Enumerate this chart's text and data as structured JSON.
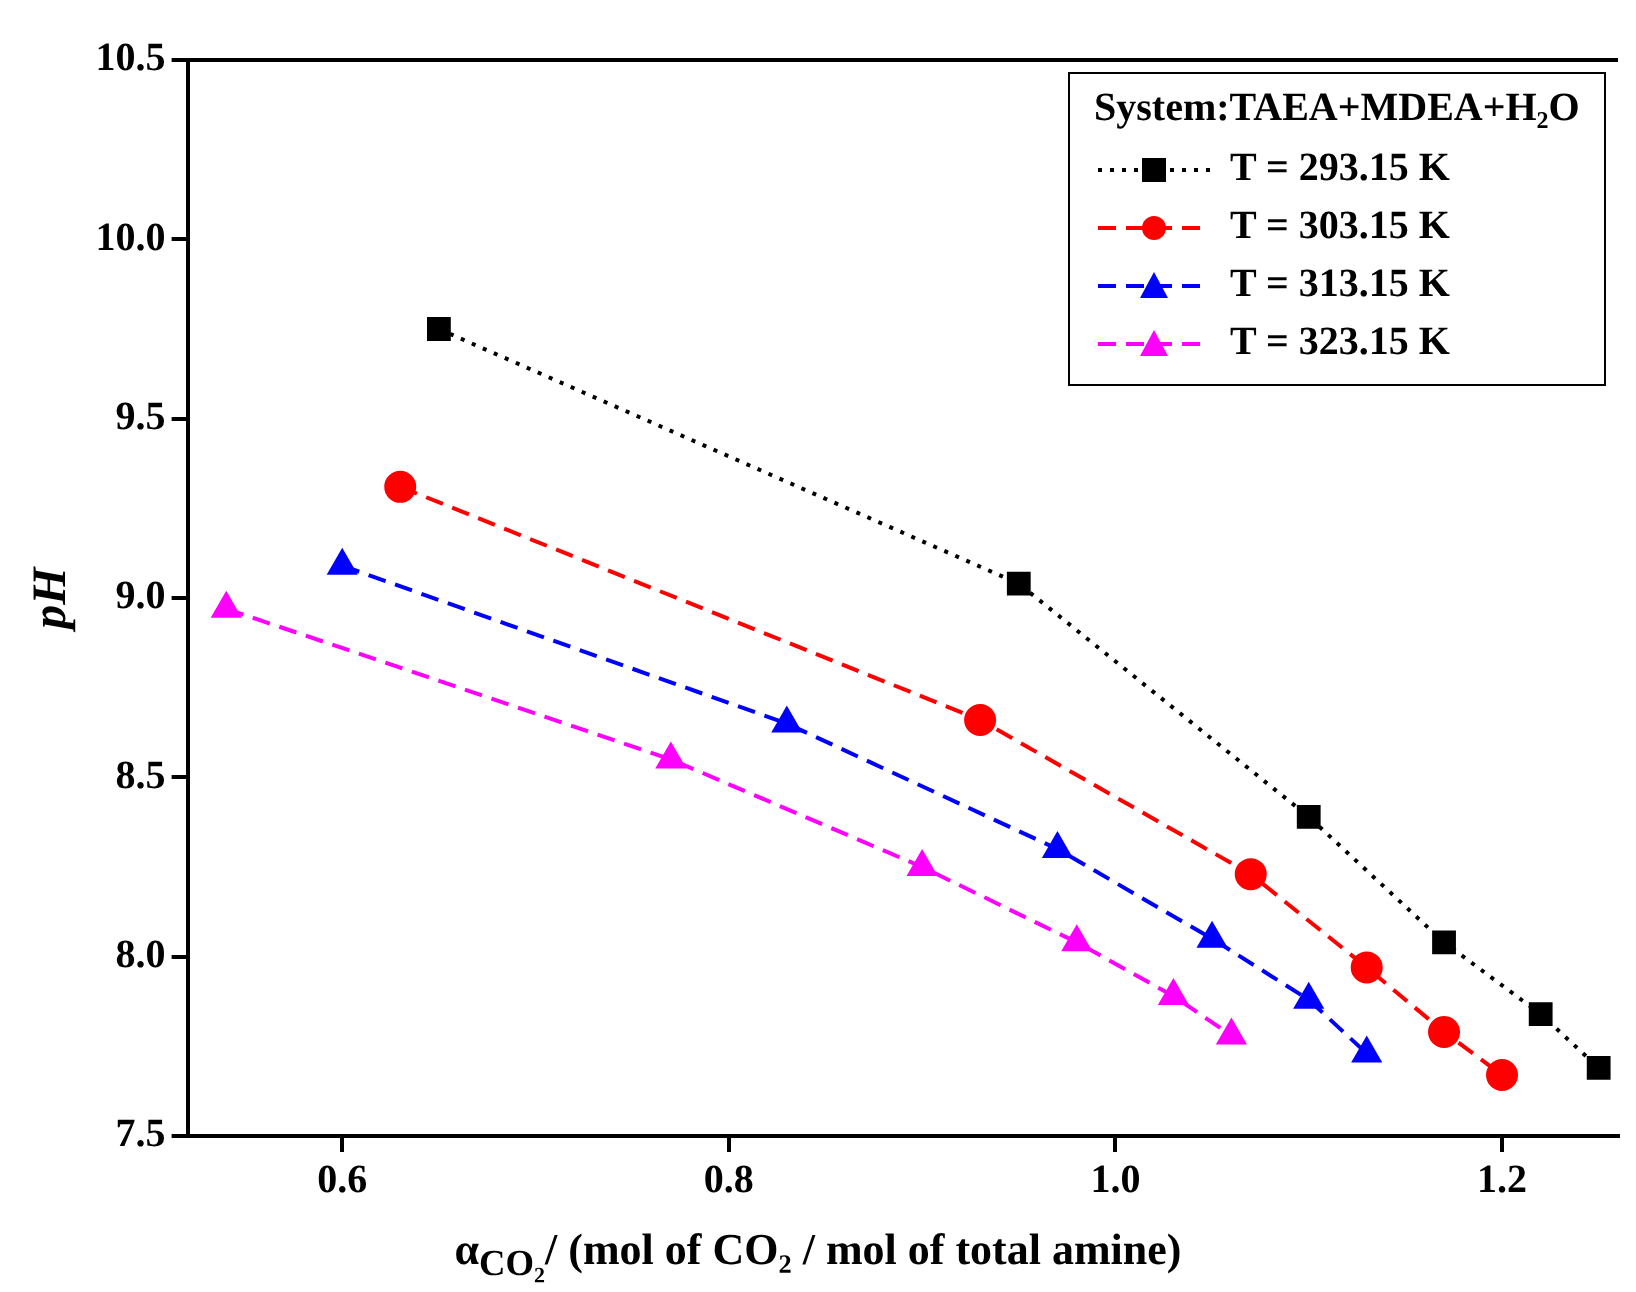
{
  "chart_data": {
    "type": "line",
    "xlabel": "α$_{CO₂}$/ (mol of CO₂ / mol of total amine)",
    "ylabel": "pH",
    "legend_title": "System:TAEA+MDEA+H₂O",
    "legend": "top right",
    "grid": false,
    "xlim": [
      0.52,
      1.26
    ],
    "xticks": [
      0.6,
      0.8,
      {
        "value": 1,
        "label": "1.0"
      },
      1.2
    ],
    "ylim": [
      7.5,
      10.5
    ],
    "yticks": [
      7.5,
      {
        "value": 8,
        "label": "8.0"
      },
      8.5,
      {
        "value": 9,
        "label": "9.0"
      },
      9.5,
      {
        "value": 10,
        "label": "10.0"
      },
      10.5
    ],
    "series": [
      {
        "name": "T = 293.15 K",
        "color": "#000000",
        "marker": "square",
        "line_style": "dotted",
        "x": [
          0.65,
          0.95,
          1.1,
          1.17,
          1.22,
          1.25
        ],
        "values": [
          9.75,
          9.04,
          8.39,
          8.04,
          7.84,
          7.69
        ]
      },
      {
        "name": "T = 303.15 K",
        "color": "#ff0000",
        "marker": "circle",
        "line_style": "dashed",
        "x": [
          0.63,
          0.93,
          1.07,
          1.13,
          1.17,
          1.2
        ],
        "values": [
          9.31,
          8.66,
          8.23,
          7.97,
          7.79,
          7.67
        ]
      },
      {
        "name": "T = 313.15 K",
        "color": "#0000ff",
        "marker": "triangle",
        "line_style": "dashed",
        "x": [
          0.6,
          0.83,
          0.97,
          1.05,
          1.1,
          1.13
        ],
        "values": [
          9.09,
          8.65,
          8.3,
          8.05,
          7.88,
          7.73
        ]
      },
      {
        "name": "T = 323.15 K",
        "color": "#ff00ff",
        "marker": "triangle",
        "line_style": "dashed",
        "x": [
          0.54,
          0.77,
          0.9,
          0.98,
          1.03,
          1.06
        ],
        "values": [
          8.97,
          8.55,
          8.25,
          8.04,
          7.89,
          7.78
        ]
      }
    ]
  }
}
